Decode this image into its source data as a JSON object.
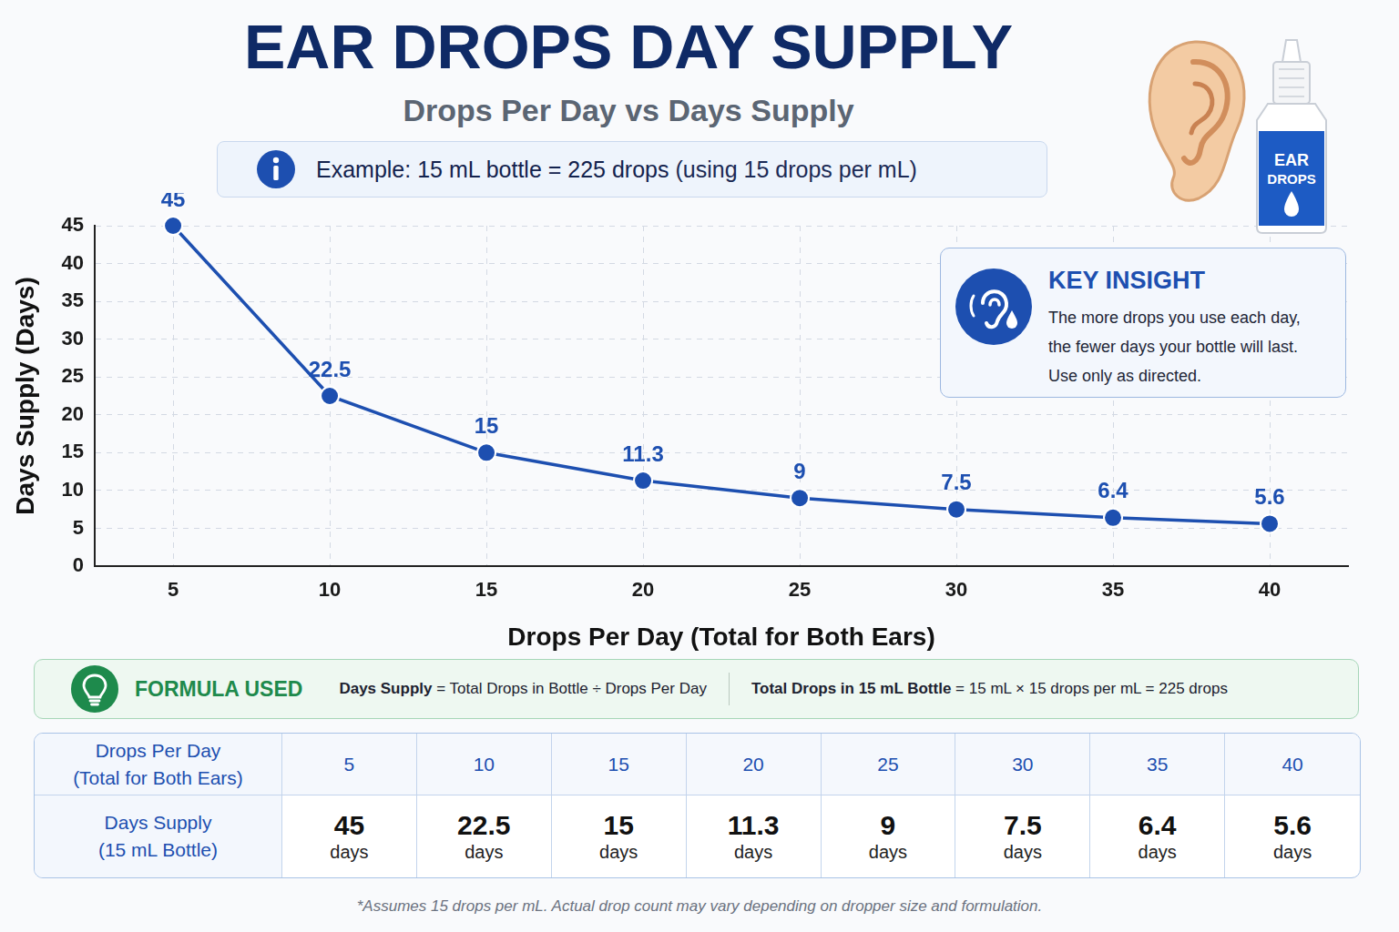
{
  "chart_data": {
    "type": "line",
    "title": "EAR DROPS DAY SUPPLY",
    "subtitle": "Drops Per Day vs Days Supply",
    "x_label": "Drops Per Day (Total for Both Ears)",
    "y_label": "Days Supply (Days)",
    "categories": [
      "5",
      "10",
      "15",
      "20",
      "25",
      "30",
      "35",
      "40"
    ],
    "values": [
      45,
      22.5,
      15,
      11.3,
      9,
      7.5,
      6.4,
      5.6
    ],
    "color": "#1d4fb0",
    "marker": "circle",
    "line_style": "solid",
    "ylim": [
      0,
      45
    ],
    "yticks": [
      0,
      5,
      10,
      15,
      20,
      25,
      30,
      35,
      40,
      45
    ],
    "grid": true,
    "data_labels": true
  },
  "info": {
    "text": "Example: 15 mL bottle = 225 drops",
    "note": "(using 15 drops per mL)"
  },
  "bottle_label": [
    "EAR",
    "DROPS"
  ],
  "key_insight": {
    "title": "KEY INSIGHT",
    "lines": [
      "The more drops you use each day,",
      "the fewer days your bottle will last.",
      "Use only as directed."
    ]
  },
  "formula": {
    "title": "FORMULA USED",
    "items": [
      {
        "term": "Days Supply",
        "rest": "= Total Drops in Bottle ÷ Drops Per Day"
      },
      {
        "term": "Total Drops in 15 mL Bottle",
        "rest": "= 15 mL × 15 drops per mL = 225 drops"
      }
    ]
  },
  "table": {
    "header_row": {
      "label": [
        "Drops Per Day",
        "(Total for Both Ears)"
      ],
      "values": [
        5,
        10,
        15,
        20,
        25,
        30,
        35,
        40
      ]
    },
    "value_row": {
      "label": [
        "Days Supply",
        "(15 mL Bottle)"
      ],
      "values": [
        45,
        22.5,
        15,
        11.3,
        9,
        7.5,
        6.4,
        5.6
      ],
      "unit": "days"
    }
  },
  "footnote": "*Assumes 15 drops per mL. Actual drop count may vary depending on dropper size and formulation."
}
